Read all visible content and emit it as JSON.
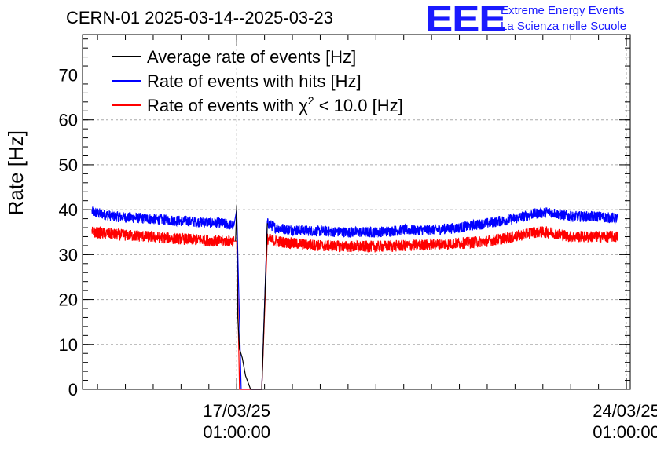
{
  "header": {
    "title": "CERN-01 2025-03-14--2025-03-23",
    "logo_letters": "EEE",
    "logo_line1": "Extreme Energy Events",
    "logo_line2": "La Scienza nelle Scuole"
  },
  "colors": {
    "average": "#000000",
    "hits": "#0000ff",
    "chi2": "#ff0000",
    "logo": "#1a1aff",
    "grid": "#aaaaaa"
  },
  "chart_data": {
    "type": "line",
    "title": "CERN-01 2025-03-14--2025-03-23",
    "ylabel": "Rate [Hz]",
    "xlabel": "",
    "ylim": [
      0,
      79
    ],
    "yticks": [
      0,
      10,
      20,
      30,
      40,
      50,
      60,
      70
    ],
    "xlim": [
      -2.77,
      7.07
    ],
    "x_unit": "days relative to 17/03/25 01:00:00",
    "xticks": [
      {
        "x": 0,
        "line1": "17/03/25",
        "line2": "01:00:00"
      },
      {
        "x": 7,
        "line1": "24/03/25",
        "line2": "01:00:00"
      }
    ],
    "grid": true,
    "legend_position": "top-left",
    "legend": [
      {
        "key": "average",
        "label": "Average rate of events [Hz]"
      },
      {
        "key": "hits",
        "label": "Rate of events with hits [Hz]"
      },
      {
        "key": "chi2",
        "label_prefix": "Rate of events with ",
        "label_chi": "χ",
        "label_sup": "2",
        "label_suffix": " < 10.0 [Hz]"
      }
    ],
    "series": [
      {
        "name": "Rate of events with hits [Hz]",
        "key": "hits",
        "x": [
          -2.6,
          -2.2,
          -1.6,
          -1.0,
          -0.3,
          -0.05,
          0.0,
          0.08,
          0.45,
          0.55,
          0.7,
          1.0,
          1.5,
          2.0,
          2.5,
          3.0,
          3.5,
          4.0,
          4.5,
          5.0,
          5.3,
          5.6,
          6.0,
          6.5,
          6.85
        ],
        "y": [
          39.5,
          38.5,
          38.0,
          37.5,
          37.0,
          36.5,
          40.0,
          0,
          0,
          37.0,
          36.0,
          35.5,
          35.2,
          35.0,
          35.0,
          35.5,
          35.5,
          36.0,
          37.0,
          38.0,
          39.0,
          39.5,
          38.5,
          38.5,
          38.0
        ],
        "noise": 1.2
      },
      {
        "name": "Rate of events with χ2 < 10.0 [Hz]",
        "key": "chi2",
        "x": [
          -2.6,
          -2.2,
          -1.6,
          -1.0,
          -0.3,
          -0.05,
          0.0,
          0.05,
          0.45,
          0.55,
          0.7,
          1.0,
          1.5,
          2.0,
          2.5,
          3.0,
          3.5,
          4.0,
          4.5,
          5.0,
          5.3,
          5.6,
          6.0,
          6.5,
          6.85
        ],
        "y": [
          35.0,
          34.5,
          34.0,
          33.5,
          33.0,
          33.0,
          33.0,
          0,
          0,
          33.5,
          33.0,
          32.5,
          32.0,
          31.8,
          31.8,
          32.0,
          32.2,
          32.5,
          33.0,
          34.0,
          35.0,
          35.0,
          34.0,
          34.0,
          34.0
        ],
        "noise": 1.3
      },
      {
        "name": "Average rate of events [Hz]",
        "key": "average",
        "x": [
          -0.02,
          0.0,
          0.02,
          0.05,
          0.1,
          0.16,
          0.25,
          0.45,
          0.55
        ],
        "y": [
          33.0,
          41.0,
          16.0,
          9.0,
          7.0,
          3.0,
          0,
          0,
          37.0
        ],
        "noise": 0
      }
    ]
  }
}
